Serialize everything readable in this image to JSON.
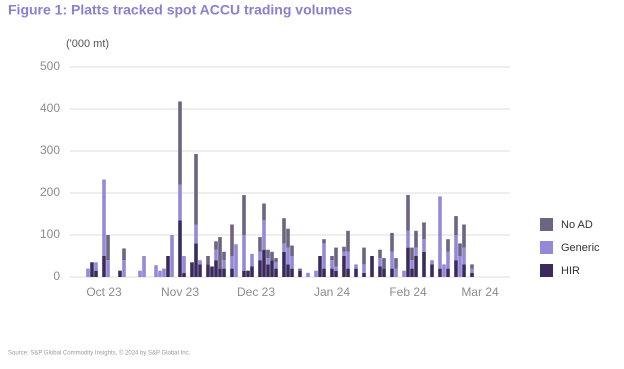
{
  "chart_data": {
    "type": "stacked_bar",
    "title": "Figure 1: Platts tracked spot ACCU trading volumes",
    "y_label": "('000 mt)",
    "source": "Source: S&P Global Commodity Insights, © 2024 by S&P Global Inc.",
    "categories": [
      null,
      null,
      null,
      null,
      null,
      null,
      null,
      null,
      "Oct 23",
      null,
      null,
      null,
      null,
      null,
      null,
      null,
      null,
      null,
      null,
      null,
      null,
      null,
      null,
      null,
      null,
      null,
      null,
      "Nov 23",
      null,
      null,
      null,
      null,
      null,
      null,
      null,
      null,
      null,
      null,
      null,
      null,
      null,
      null,
      null,
      null,
      null,
      null,
      "Dec 23",
      null,
      null,
      null,
      null,
      null,
      null,
      null,
      null,
      null,
      null,
      null,
      null,
      null,
      null,
      null,
      null,
      null,
      null,
      "Jan 24",
      null,
      null,
      null,
      null,
      null,
      null,
      null,
      null,
      null,
      null,
      null,
      null,
      null,
      null,
      null,
      null,
      null,
      null,
      "Feb 24",
      null,
      null,
      null,
      null,
      null,
      null,
      null,
      null,
      null,
      null,
      null,
      null,
      null,
      null,
      null,
      null,
      null,
      "Mar 24",
      null,
      null,
      null,
      null,
      null,
      null,
      null
    ],
    "series": [
      {
        "name": "HIR",
        "color": "#3b2b5c",
        "values": [
          0,
          0,
          0,
          0,
          0,
          35,
          15,
          0,
          50,
          0,
          0,
          0,
          15,
          0,
          0,
          0,
          0,
          0,
          0,
          0,
          0,
          0,
          0,
          0,
          50,
          0,
          0,
          135,
          10,
          0,
          35,
          80,
          30,
          0,
          30,
          25,
          40,
          20,
          20,
          0,
          20,
          0,
          0,
          15,
          15,
          25,
          0,
          40,
          65,
          30,
          40,
          20,
          0,
          60,
          30,
          20,
          0,
          15,
          0,
          0,
          0,
          0,
          50,
          20,
          0,
          20,
          15,
          0,
          50,
          20,
          0,
          20,
          0,
          10,
          0,
          50,
          0,
          25,
          20,
          0,
          20,
          0,
          0,
          0,
          70,
          20,
          50,
          0,
          60,
          0,
          30,
          0,
          20,
          0,
          20,
          0,
          40,
          0,
          30,
          0,
          10,
          0,
          0,
          0,
          0,
          0,
          0,
          0,
          0,
          0
        ]
      },
      {
        "name": "Generic",
        "color": "#9488d8",
        "values": [
          0,
          0,
          0,
          0,
          20,
          0,
          20,
          0,
          182,
          40,
          0,
          0,
          0,
          40,
          0,
          0,
          0,
          15,
          50,
          0,
          0,
          28,
          15,
          20,
          0,
          100,
          0,
          85,
          40,
          0,
          0,
          45,
          10,
          0,
          0,
          0,
          25,
          0,
          20,
          0,
          30,
          78,
          0,
          85,
          0,
          30,
          0,
          20,
          70,
          15,
          0,
          15,
          0,
          20,
          40,
          30,
          0,
          0,
          0,
          10,
          0,
          15,
          0,
          60,
          0,
          20,
          10,
          0,
          10,
          40,
          0,
          10,
          0,
          20,
          0,
          0,
          0,
          20,
          0,
          0,
          40,
          20,
          0,
          15,
          40,
          20,
          20,
          0,
          30,
          0,
          10,
          0,
          172,
          30,
          40,
          0,
          60,
          50,
          40,
          0,
          10,
          0,
          0,
          0,
          0,
          0,
          0,
          0,
          0,
          0
        ]
      },
      {
        "name": "No AD",
        "color": "#6d6482",
        "values": [
          0,
          0,
          0,
          0,
          0,
          0,
          0,
          0,
          0,
          60,
          0,
          0,
          0,
          28,
          0,
          0,
          0,
          0,
          0,
          0,
          0,
          0,
          0,
          0,
          0,
          0,
          0,
          198,
          0,
          0,
          0,
          168,
          0,
          0,
          20,
          0,
          20,
          75,
          20,
          0,
          75,
          0,
          0,
          95,
          0,
          0,
          0,
          35,
          40,
          20,
          20,
          10,
          0,
          60,
          45,
          25,
          0,
          5,
          0,
          0,
          0,
          0,
          0,
          10,
          0,
          10,
          45,
          0,
          12,
          50,
          0,
          0,
          0,
          40,
          0,
          0,
          0,
          20,
          25,
          0,
          45,
          25,
          0,
          0,
          85,
          30,
          40,
          0,
          40,
          0,
          0,
          0,
          0,
          0,
          30,
          0,
          45,
          30,
          55,
          0,
          10,
          0,
          0,
          0,
          0,
          0,
          0,
          0,
          0,
          0
        ]
      }
    ],
    "ylim": [
      0,
      500
    ],
    "yticks": [
      0,
      100,
      200,
      300,
      400,
      500
    ],
    "grid": true,
    "legend": "right"
  }
}
